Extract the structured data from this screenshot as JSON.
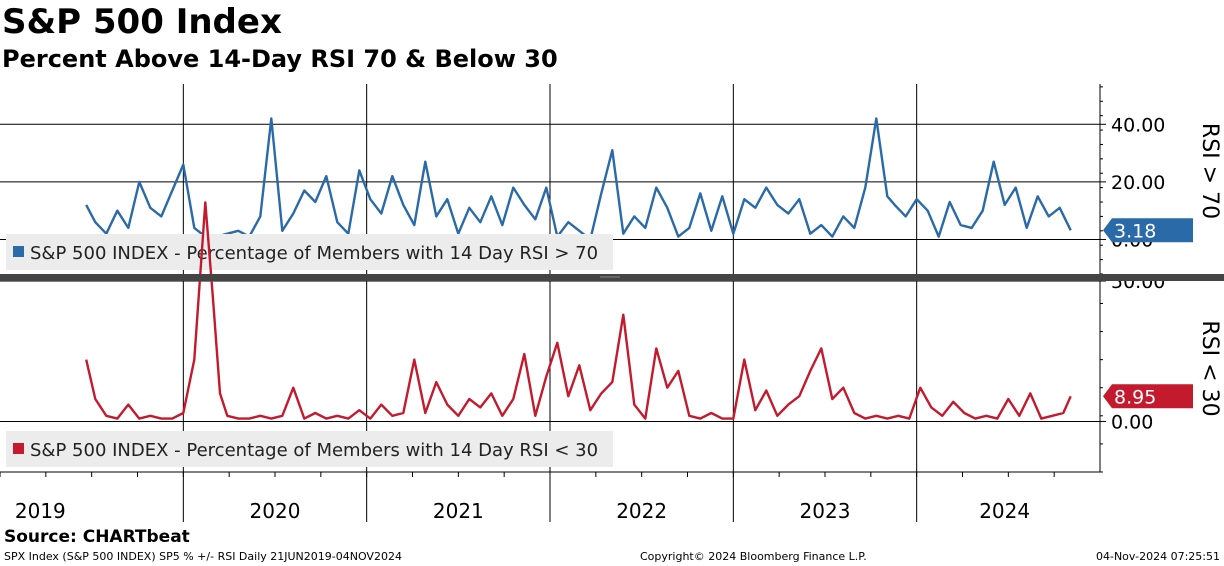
{
  "header": {
    "title": "S&P 500 Index",
    "subtitle": "Percent Above 14-Day RSI 70 & Below 30"
  },
  "colors": {
    "upper_series": "#2b6aa8",
    "lower_series": "#c41a2e",
    "divider": "#444444",
    "legend_bg": "#ececec"
  },
  "chart_data": [
    {
      "type": "line",
      "panel": "upper",
      "axis_label": "RSI > 70",
      "ylim": [
        -12,
        54
      ],
      "y_ticks": [
        0,
        20,
        40
      ],
      "y_tick_labels": [
        "0.00",
        "20.00",
        "40.00"
      ],
      "grid": true,
      "legend": "bottom-left",
      "last_value_label": "3.18",
      "series": [
        {
          "name": "S&P 500 INDEX - Percentage of Members with 14 Day RSI > 70",
          "x": [
            2019.47,
            2019.52,
            2019.58,
            2019.64,
            2019.7,
            2019.76,
            2019.82,
            2019.88,
            2019.94,
            2020.0,
            2020.06,
            2020.12,
            2020.18,
            2020.24,
            2020.3,
            2020.36,
            2020.42,
            2020.48,
            2020.54,
            2020.6,
            2020.66,
            2020.72,
            2020.78,
            2020.84,
            2020.9,
            2020.96,
            2021.02,
            2021.08,
            2021.14,
            2021.2,
            2021.26,
            2021.32,
            2021.38,
            2021.44,
            2021.5,
            2021.56,
            2021.62,
            2021.68,
            2021.74,
            2021.8,
            2021.86,
            2021.92,
            2021.98,
            2022.04,
            2022.1,
            2022.16,
            2022.22,
            2022.28,
            2022.34,
            2022.4,
            2022.46,
            2022.52,
            2022.58,
            2022.64,
            2022.7,
            2022.76,
            2022.82,
            2022.88,
            2022.94,
            2023.0,
            2023.06,
            2023.12,
            2023.18,
            2023.24,
            2023.3,
            2023.36,
            2023.42,
            2023.48,
            2023.54,
            2023.6,
            2023.66,
            2023.72,
            2023.78,
            2023.84,
            2023.88,
            2023.94,
            2024.0,
            2024.06,
            2024.12,
            2024.18,
            2024.24,
            2024.3,
            2024.36,
            2024.42,
            2024.48,
            2024.54,
            2024.6,
            2024.66,
            2024.72,
            2024.78,
            2024.84
          ],
          "y": [
            12,
            6,
            2,
            10,
            4,
            20,
            11,
            8,
            17,
            26,
            4,
            1,
            1,
            2,
            3,
            1,
            8,
            42,
            3,
            9,
            17,
            13,
            22,
            6,
            2,
            24,
            14,
            9,
            22,
            12,
            5,
            27,
            8,
            14,
            2,
            11,
            6,
            15,
            5,
            18,
            12,
            7,
            18,
            1,
            6,
            3,
            0,
            16,
            31,
            2,
            8,
            4,
            18,
            11,
            1,
            4,
            16,
            3,
            15,
            2,
            14,
            11,
            18,
            12,
            9,
            14,
            2,
            5,
            1,
            8,
            4,
            18,
            42,
            15,
            12,
            8,
            14,
            10,
            1,
            13,
            5,
            4,
            10,
            27,
            12,
            18,
            4,
            15,
            8,
            11,
            3.18
          ]
        }
      ]
    },
    {
      "type": "line",
      "panel": "lower",
      "axis_label": "RSI < 30",
      "ylim": [
        -18,
        50
      ],
      "y_ticks": [
        0,
        50
      ],
      "y_tick_labels": [
        "0.00",
        "50.00"
      ],
      "grid": true,
      "legend": "bottom-left",
      "last_value_label": "8.95",
      "series": [
        {
          "name": "S&P 500 INDEX - Percentage of Members with 14 Day RSI < 30",
          "x": [
            2019.47,
            2019.52,
            2019.58,
            2019.64,
            2019.7,
            2019.76,
            2019.82,
            2019.88,
            2019.94,
            2020.0,
            2020.06,
            2020.12,
            2020.16,
            2020.2,
            2020.24,
            2020.3,
            2020.36,
            2020.42,
            2020.48,
            2020.54,
            2020.6,
            2020.66,
            2020.72,
            2020.78,
            2020.84,
            2020.9,
            2020.96,
            2021.02,
            2021.08,
            2021.14,
            2021.2,
            2021.26,
            2021.32,
            2021.38,
            2021.44,
            2021.5,
            2021.56,
            2021.62,
            2021.68,
            2021.74,
            2021.8,
            2021.86,
            2021.92,
            2021.98,
            2022.04,
            2022.1,
            2022.16,
            2022.22,
            2022.28,
            2022.34,
            2022.4,
            2022.46,
            2022.52,
            2022.58,
            2022.64,
            2022.7,
            2022.76,
            2022.82,
            2022.88,
            2022.94,
            2023.0,
            2023.06,
            2023.12,
            2023.18,
            2023.24,
            2023.3,
            2023.36,
            2023.42,
            2023.48,
            2023.54,
            2023.6,
            2023.66,
            2023.72,
            2023.78,
            2023.84,
            2023.9,
            2023.96,
            2024.02,
            2024.08,
            2024.14,
            2024.2,
            2024.26,
            2024.32,
            2024.38,
            2024.44,
            2024.5,
            2024.56,
            2024.62,
            2024.68,
            2024.74,
            2024.8,
            2024.84
          ],
          "y": [
            22,
            8,
            2,
            1,
            6,
            1,
            2,
            1,
            1,
            3,
            22,
            78,
            45,
            10,
            2,
            1,
            1,
            2,
            1,
            2,
            12,
            1,
            3,
            1,
            2,
            1,
            4,
            1,
            6,
            2,
            3,
            22,
            3,
            14,
            6,
            2,
            8,
            5,
            10,
            2,
            8,
            24,
            2,
            16,
            28,
            9,
            20,
            4,
            10,
            14,
            38,
            6,
            1,
            26,
            12,
            18,
            2,
            1,
            3,
            1,
            1,
            22,
            4,
            11,
            2,
            6,
            9,
            18,
            26,
            8,
            12,
            3,
            1,
            2,
            1,
            2,
            1,
            12,
            5,
            2,
            7,
            3,
            1,
            2,
            1,
            8,
            2,
            10,
            1,
            2,
            3,
            8.95
          ]
        }
      ]
    }
  ],
  "x_axis": {
    "year_labels": [
      "2019",
      "2020",
      "2021",
      "2022",
      "2023",
      "2024"
    ],
    "year_starts": [
      2020,
      2021,
      2022,
      2023,
      2024
    ],
    "x_range": [
      2019.0,
      2025.0
    ]
  },
  "footer": {
    "source": "Source: CHARTbeat",
    "left": "SPX Index (S&P 500 INDEX) SP5 % +/- RSI  Daily 21JUN2019-04NOV2024",
    "middle": "Copyright© 2024 Bloomberg Finance L.P.",
    "right": "04-Nov-2024 07:25:51"
  }
}
